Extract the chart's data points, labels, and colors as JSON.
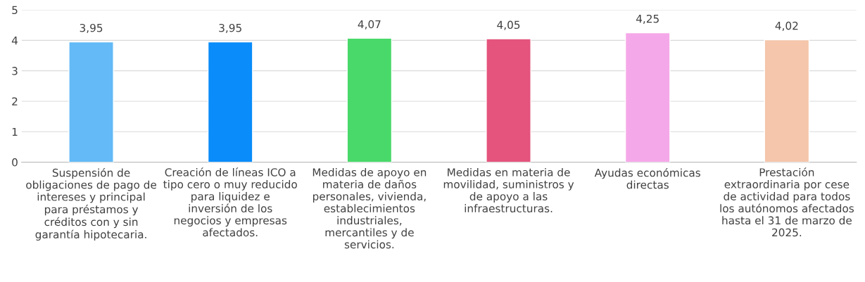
{
  "chart_data": {
    "type": "bar",
    "categories": [
      "Suspensión de obligaciones de pago de intereses y principal para préstamos y créditos con y sin garantía hipotecaria.",
      "Creación de líneas ICO a tipo cero o muy reducido para liquidez e inversión de los negocios y empresas afectados.",
      "Medidas de apoyo en materia de daños personales, vivienda, establecimientos industriales, mercantiles y de servicios.",
      "Medidas en materia de movilidad, suministros y de apoyo a las infraestructuras.",
      "Ayudas económicas directas",
      "Prestación extraordinaria por cese de actividad para todos los autónomos afectados hasta el 31 de marzo de 2025."
    ],
    "values": [
      3.95,
      3.95,
      4.07,
      4.05,
      4.25,
      4.02
    ],
    "value_labels": [
      "3,95",
      "3,95",
      "4,07",
      "4,05",
      "4,25",
      "4,02"
    ],
    "colors": [
      "#63baf6",
      "#0a8cfa",
      "#49d96a",
      "#e4547d",
      "#f5a8e9",
      "#f5c6ab"
    ],
    "ylim": [
      0,
      5
    ],
    "yticks": [
      0,
      1,
      2,
      3,
      4,
      5
    ],
    "grid": "y"
  }
}
